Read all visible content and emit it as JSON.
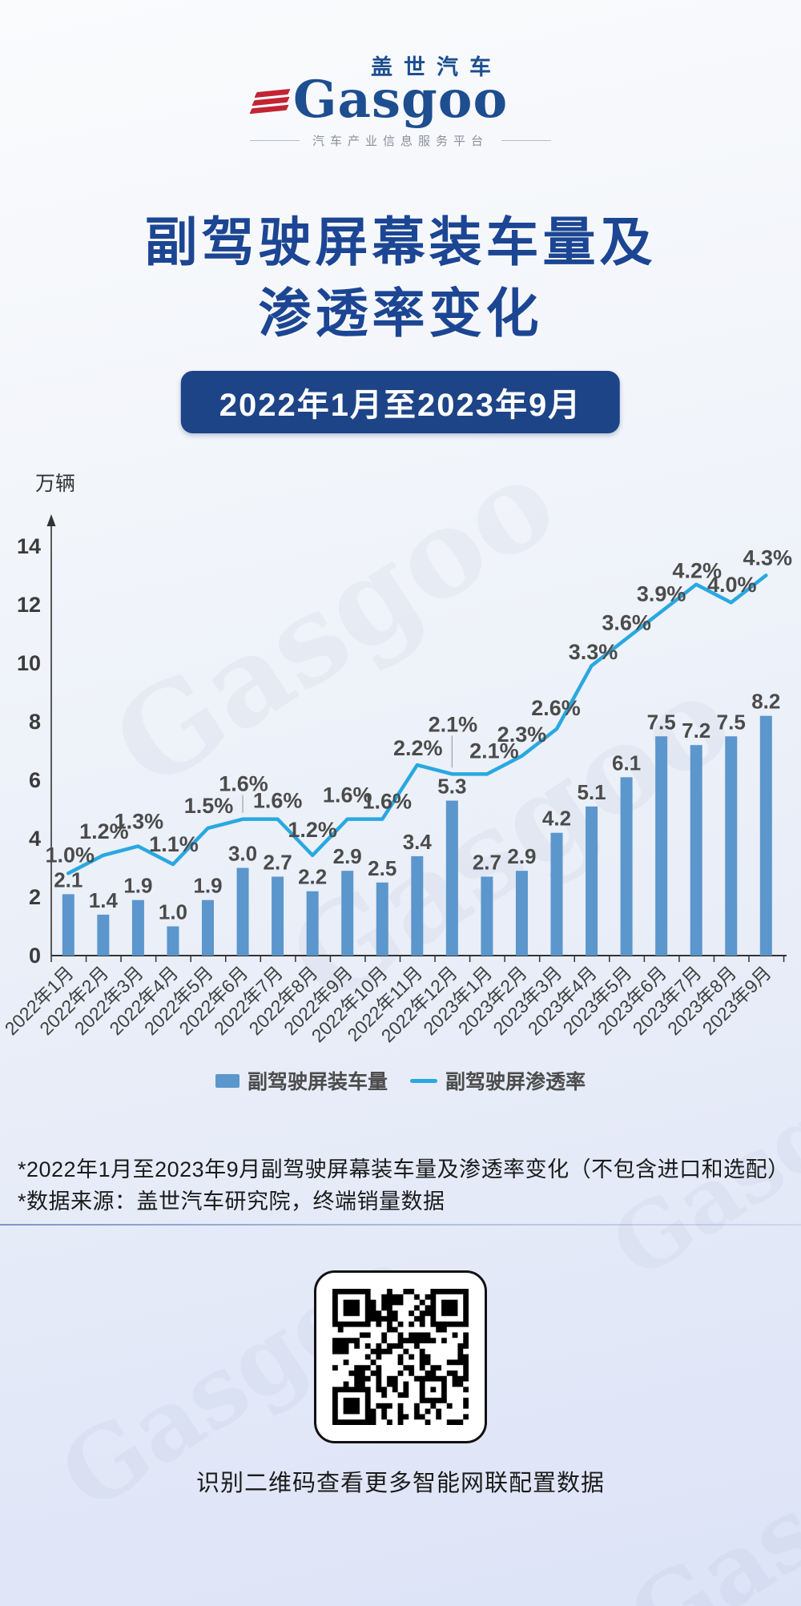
{
  "logo": {
    "cn": "盖世汽车",
    "en": "Gasgoo",
    "tagline": "汽车产业信息服务平台"
  },
  "title": {
    "line1": "副驾驶屏幕装车量及",
    "line2": "渗透率变化"
  },
  "period_badge": "2022年1月至2023年9月",
  "chart_data": {
    "type": "bar",
    "title": "副驾驶屏幕装车量及渗透率变化",
    "unit_label": "万辆",
    "categories": [
      "2022年1月",
      "2022年2月",
      "2022年3月",
      "2022年4月",
      "2022年5月",
      "2022年6月",
      "2022年7月",
      "2022年8月",
      "2022年9月",
      "2022年10月",
      "2022年11月",
      "2022年12月",
      "2023年1月",
      "2023年2月",
      "2023年3月",
      "2023年4月",
      "2023年5月",
      "2023年6月",
      "2023年7月",
      "2023年8月",
      "2023年9月"
    ],
    "series": [
      {
        "name": "副驾驶屏装车量",
        "type": "bar",
        "color": "#5b96cc",
        "values": [
          2.1,
          1.4,
          1.9,
          1.0,
          1.9,
          3.0,
          2.7,
          2.2,
          2.9,
          2.5,
          3.4,
          5.3,
          2.7,
          2.9,
          4.2,
          5.1,
          6.1,
          7.5,
          7.2,
          7.5,
          8.2
        ]
      },
      {
        "name": "副驾驶屏渗透率",
        "type": "line",
        "color": "#29a8e0",
        "values": [
          1.0,
          1.2,
          1.3,
          1.1,
          1.5,
          1.6,
          1.6,
          1.2,
          1.6,
          1.6,
          2.2,
          2.1,
          2.1,
          2.3,
          2.6,
          3.3,
          3.6,
          3.9,
          4.2,
          4.0,
          4.3
        ],
        "labels": [
          "1.0%",
          "1.2%",
          "1.3%",
          "1.1%",
          "1.5%",
          "1.6%",
          "1.6%",
          "1.2%",
          "1.6%",
          "1.6%",
          "2.2%",
          "2.1%",
          "2.1%",
          "2.3%",
          "2.6%",
          "3.3%",
          "3.6%",
          "3.9%",
          "4.2%",
          "4.0%",
          "4.3%"
        ]
      }
    ],
    "y_axis": {
      "min": 0,
      "max": 14,
      "ticks": [
        0,
        2,
        4,
        6,
        8,
        10,
        12,
        14
      ]
    },
    "legend_position": "bottom",
    "grid": false
  },
  "footnotes": [
    "*2022年1月至2023年9月副驾驶屏幕装车量及渗透率变化（不包含进口和选配）",
    "*数据来源：盖世汽车研究院，终端销量数据"
  ],
  "qr": {
    "caption": "识别二维码查看更多智能网联配置数据"
  },
  "colors": {
    "title": "#1c4693",
    "badge_bg": "#1d4487",
    "bar": "#5b96cc",
    "line": "#29a8e0",
    "accent_red": "#c32332"
  }
}
